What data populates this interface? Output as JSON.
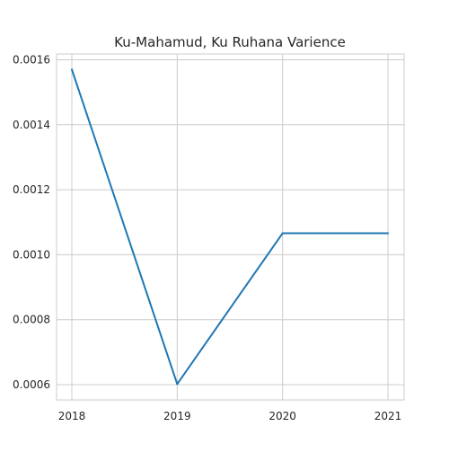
{
  "chart_data": {
    "type": "line",
    "title": "Ku-Mahamud, Ku Ruhana Varience",
    "xlabel": "",
    "ylabel": "",
    "x": [
      "2018",
      "2019",
      "2020",
      "2021"
    ],
    "series": [
      {
        "values": [
          0.00157,
          0.000602,
          0.001066,
          0.001066
        ]
      }
    ],
    "ylim": [
      0.000553,
      0.001618
    ],
    "yticks": [
      0.0006,
      0.0008,
      0.001,
      0.0012,
      0.0014,
      0.0016
    ],
    "ytick_labels": [
      "0.0006",
      "0.0008",
      "0.0010",
      "0.0012",
      "0.0014",
      "0.0016"
    ],
    "grid": true,
    "legend": "none",
    "colors": {
      "line": "#1f77b4",
      "grid": "#cccccc",
      "axes_edge": "#cccccc",
      "background": "#ffffff",
      "text": "#262626"
    }
  }
}
